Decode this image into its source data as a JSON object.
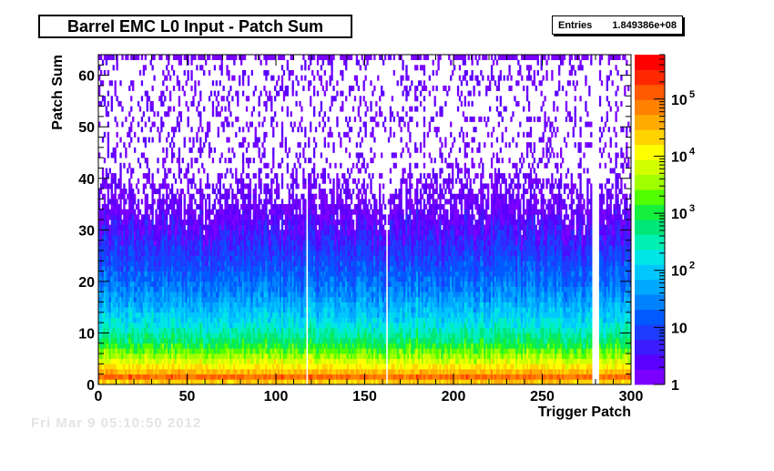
{
  "title": "Barrel EMC L0 Input - Patch Sum",
  "stats": {
    "label": "Entries",
    "value": "1.849386e+08"
  },
  "footer_text": "Fri Mar  9 05:10:50 2012",
  "chart_data": {
    "type": "heatmap",
    "title": "Barrel EMC L0 Input - Patch Sum",
    "xlabel": "Trigger Patch",
    "ylabel": "Patch Sum",
    "xlim": [
      0,
      300
    ],
    "ylim": [
      0,
      64
    ],
    "x_ticks": [
      0,
      50,
      100,
      150,
      200,
      250,
      300
    ],
    "y_ticks": [
      0,
      10,
      20,
      30,
      40,
      50,
      60
    ],
    "color_scale": "log",
    "z_range": [
      1,
      600000
    ],
    "z_ticks": [
      {
        "value": 1,
        "label": "1"
      },
      {
        "value": 10,
        "label": "10"
      },
      {
        "value": 100,
        "label": "10",
        "exp": "2"
      },
      {
        "value": 1000,
        "label": "10",
        "exp": "3"
      },
      {
        "value": 10000,
        "label": "10",
        "exp": "4"
      },
      {
        "value": 100000,
        "label": "10",
        "exp": "5"
      }
    ],
    "entries": 184938600,
    "empty_patches": [
      117,
      162,
      278,
      279,
      280,
      281
    ],
    "rows": [
      {
        "y": 0,
        "counts_approx": 3000
      },
      {
        "y": 1,
        "counts_approx": 200000
      },
      {
        "y": 2,
        "counts_approx": 50000
      },
      {
        "y": 3,
        "counts_approx": 20000
      },
      {
        "y": 5,
        "counts_approx": 5000
      },
      {
        "y": 8,
        "counts_approx": 800
      },
      {
        "y": 12,
        "counts_approx": 150
      },
      {
        "y": 18,
        "counts_approx": 30
      },
      {
        "y": 25,
        "counts_approx": 8
      },
      {
        "y": 32,
        "counts_approx": 3
      },
      {
        "y": 40,
        "counts_approx": 1
      },
      {
        "y": 55,
        "counts_approx": 1
      },
      {
        "y": 63,
        "counts_approx": 1
      }
    ],
    "palette": [
      "#7b00ff",
      "#5a00ff",
      "#3c1cff",
      "#1e3cff",
      "#005aff",
      "#0082ff",
      "#00a8ff",
      "#00c8ff",
      "#00e6e6",
      "#00f0b4",
      "#00e678",
      "#14f03c",
      "#50ff00",
      "#a0ff00",
      "#d2ff00",
      "#ffff00",
      "#ffd200",
      "#ffaa00",
      "#ff8200",
      "#ff5a00",
      "#ff2800",
      "#ff0000"
    ]
  }
}
